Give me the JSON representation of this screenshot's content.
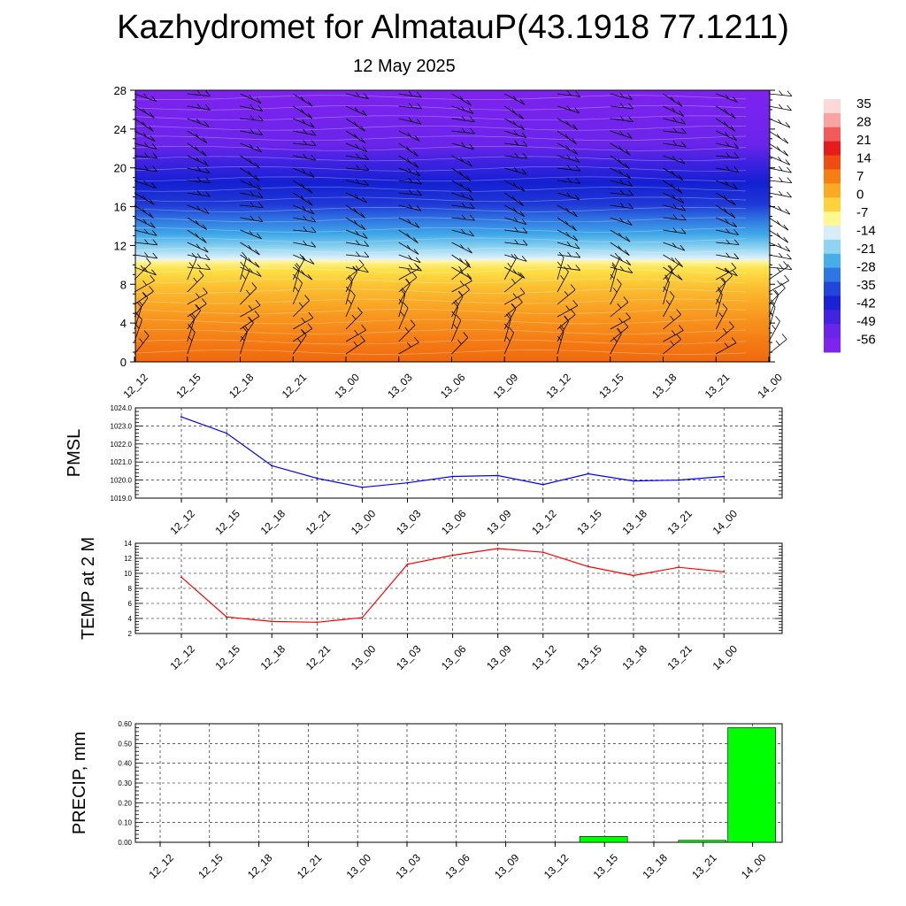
{
  "title": "Kazhydromet for AlmatauP(43.1918 77.1211)",
  "subtitle": "12 May 2025",
  "colors": {
    "pmsl_line": "#0000ff",
    "temp_line": "#ff0000",
    "precip_bar": "#00ff00"
  },
  "chart_data": [
    {
      "type": "heatmap",
      "name": "cross-section",
      "x_ticks": [
        "12_12",
        "12_15",
        "12_18",
        "12_21",
        "13_00",
        "13_03",
        "13_06",
        "13_09",
        "13_12",
        "13_15",
        "13_18",
        "13_21",
        "14_00"
      ],
      "y_ticks": [
        "0",
        "4",
        "8",
        "12",
        "16",
        "20",
        "24",
        "28"
      ],
      "ylim": [
        0,
        28
      ],
      "colorbar_labels": [
        "35",
        "28",
        "21",
        "14",
        "7",
        "0",
        "-7",
        "-14",
        "-21",
        "-28",
        "-35",
        "-42",
        "-49",
        "-56"
      ],
      "layers": [
        {
          "from": 0,
          "to": 10.5,
          "values": "warm (orange to yellow)"
        },
        {
          "from": 10.5,
          "to": 28,
          "values": "cold (light blue to violet)"
        }
      ]
    },
    {
      "type": "line",
      "ylabel": "PMSL",
      "categories": [
        "12_12",
        "12_15",
        "12_18",
        "12_21",
        "13_00",
        "13_03",
        "13_06",
        "13_09",
        "13_12",
        "13_15",
        "13_18",
        "13_21",
        "14_00"
      ],
      "values": [
        1023.5,
        1022.6,
        1020.8,
        1020.1,
        1019.6,
        1019.85,
        1020.2,
        1020.25,
        1019.75,
        1020.35,
        1019.95,
        1020.0,
        1020.2
      ],
      "ylim": [
        1019.0,
        1024.0
      ],
      "y_ticks": [
        "1019.0",
        "1020.0",
        "1021.0",
        "1022.0",
        "1023.0",
        "1024.0"
      ]
    },
    {
      "type": "line",
      "ylabel": "TEMP at 2 M",
      "categories": [
        "12_12",
        "12_15",
        "12_18",
        "12_21",
        "13_00",
        "13_03",
        "13_06",
        "13_09",
        "13_12",
        "13_15",
        "13_18",
        "13_21",
        "14_00"
      ],
      "values": [
        9.5,
        4.2,
        3.6,
        3.5,
        4.1,
        11.2,
        12.4,
        13.3,
        12.8,
        10.9,
        9.7,
        10.8,
        10.2
      ],
      "ylim": [
        2,
        14
      ],
      "y_ticks": [
        "2",
        "4",
        "6",
        "8",
        "10",
        "12",
        "14"
      ]
    },
    {
      "type": "bar",
      "ylabel": "PRECIP, mm",
      "categories": [
        "12_12",
        "12_15",
        "12_18",
        "12_21",
        "13_00",
        "13_03",
        "13_06",
        "13_09",
        "13_12",
        "13_15",
        "13_18",
        "13_21",
        "14_00"
      ],
      "values": [
        0,
        0,
        0,
        0,
        0,
        0,
        0,
        0,
        0,
        0.03,
        0,
        0.01,
        0.58
      ],
      "ylim": [
        0,
        0.6
      ],
      "y_ticks": [
        "0.00",
        "0.10",
        "0.20",
        "0.30",
        "0.40",
        "0.50",
        "0.60"
      ]
    }
  ]
}
